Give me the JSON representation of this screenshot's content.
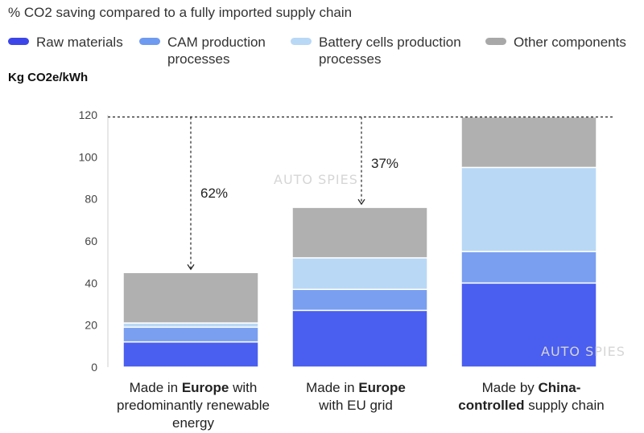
{
  "subtitle": "% CO2 saving compared to a fully imported supply chain",
  "y_unit_label": "Kg CO2e/kWh",
  "legend": [
    {
      "line1": "Raw materials",
      "line2": ""
    },
    {
      "line1": "CAM production",
      "line2": "processes"
    },
    {
      "line1": "Battery cells production",
      "line2": "processes"
    },
    {
      "line1": "Other components",
      "line2": ""
    }
  ],
  "categories": [
    {
      "line1_pre": "Made in ",
      "line1_bold": "Europe",
      "line1_post": " with",
      "line2_pre": "predominantly renewable",
      "line2_bold": "",
      "line2_post": "",
      "line3": "energy"
    },
    {
      "line1_pre": "Made in ",
      "line1_bold": "Europe",
      "line1_post": "",
      "line2_pre": "with EU grid",
      "line2_bold": "",
      "line2_post": "",
      "line3": ""
    },
    {
      "line1_pre": "Made by ",
      "line1_bold": "China-",
      "line1_post": "",
      "line2_pre": "",
      "line2_bold": "controlled",
      "line2_post": " supply chain",
      "line3": ""
    }
  ],
  "watermarks": [
    "AUTO SPIES",
    "AUTO SPIES"
  ],
  "chart_data": {
    "type": "bar",
    "stacked": true,
    "categories": [
      "Made in Europe with predominantly renewable energy",
      "Made in Europe with EU grid",
      "Made by China-controlled supply chain"
    ],
    "series": [
      {
        "name": "Raw materials",
        "color": "#4a5ef0",
        "values": [
          12,
          27,
          40
        ]
      },
      {
        "name": "CAM production processes",
        "color": "#7a9ff0",
        "values": [
          7,
          10,
          15
        ]
      },
      {
        "name": "Battery cells production processes",
        "color": "#b8d8f6",
        "values": [
          2,
          15,
          40
        ]
      },
      {
        "name": "Other components",
        "color": "#b0b0b0",
        "values": [
          24,
          24,
          24
        ]
      }
    ],
    "ylim": [
      0,
      120
    ],
    "yticks": [
      0,
      20,
      40,
      60,
      80,
      100,
      120
    ],
    "grid": false,
    "annotations": [
      {
        "text": "62%",
        "from_category": 0
      },
      {
        "text": "37%",
        "from_category": 1
      }
    ]
  }
}
